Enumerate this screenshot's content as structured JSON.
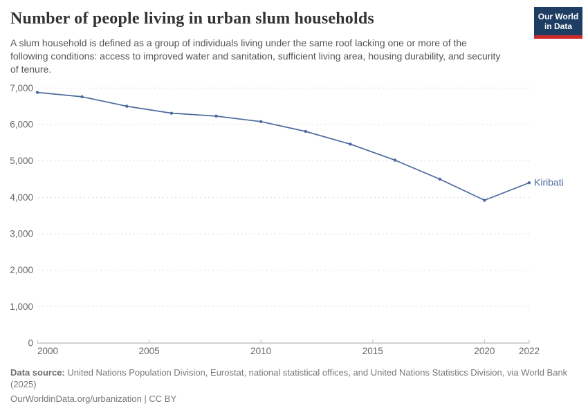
{
  "header": {
    "title": "Number of people living in urban slum households",
    "subtitle": "A slum household is defined as a group of individuals living under the same roof lacking one or more of the following conditions: access to improved water and sanitation, sufficient living area, housing durability, and security of tenure."
  },
  "logo": {
    "line1": "Our World",
    "line2": "in Data",
    "background_color": "#1d3d63",
    "accent_color": "#cc2a28"
  },
  "chart_data": {
    "type": "line",
    "title": "Number of people living in urban slum households",
    "xlabel": "",
    "ylabel": "",
    "x": [
      2000,
      2002,
      2004,
      2006,
      2008,
      2010,
      2012,
      2014,
      2016,
      2018,
      2020,
      2022
    ],
    "series": [
      {
        "name": "Kiribati",
        "color": "#4C6A9C",
        "values": [
          6880,
          6760,
          6500,
          6310,
          6230,
          6080,
          5810,
          5460,
          5020,
          4500,
          3920,
          4400
        ]
      }
    ],
    "xlim": [
      2000,
      2022
    ],
    "ylim": [
      0,
      7000
    ],
    "xticks": [
      {
        "value": 2000,
        "label": "2000"
      },
      {
        "value": 2005,
        "label": "2005"
      },
      {
        "value": 2010,
        "label": "2010"
      },
      {
        "value": 2015,
        "label": "2015"
      },
      {
        "value": 2020,
        "label": "2020"
      },
      {
        "value": 2022,
        "label": "2022"
      }
    ],
    "yticks": [
      {
        "value": 0,
        "label": "0"
      },
      {
        "value": 1000,
        "label": "1,000"
      },
      {
        "value": 2000,
        "label": "2,000"
      },
      {
        "value": 3000,
        "label": "3,000"
      },
      {
        "value": 4000,
        "label": "4,000"
      },
      {
        "value": 5000,
        "label": "5,000"
      },
      {
        "value": 6000,
        "label": "6,000"
      },
      {
        "value": 7000,
        "label": "7,000"
      }
    ],
    "grid": "horizontal-dashed",
    "legend_position": "end-of-line",
    "colors": {
      "gridline": "#dcdcdc",
      "axis": "#a3a3a3",
      "tick_label": "#666666"
    }
  },
  "footer": {
    "source_label": "Data source:",
    "source_text": " United Nations Population Division, Eurostat, national statistical offices, and United Nations Statistics Division, via World Bank",
    "source_wrap": "(2025)",
    "url": "OurWorldinData.org/urbanization",
    "separator": " | ",
    "license": "CC BY"
  }
}
